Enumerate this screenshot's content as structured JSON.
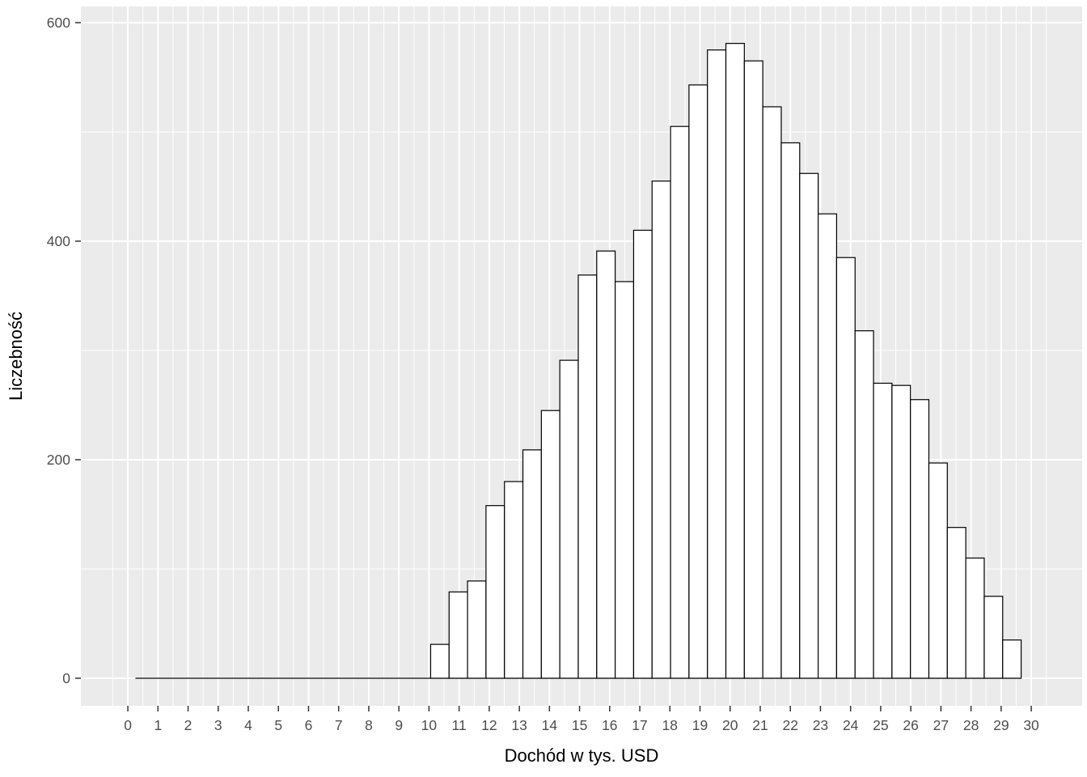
{
  "chart_data": {
    "type": "bar",
    "subtype": "histogram",
    "title": "",
    "xlabel": "Dochód w tys. USD",
    "ylabel": "Liczebność",
    "bin_start": 0.25,
    "bin_width": 0.6128,
    "counts": [
      0,
      0,
      0,
      0,
      0,
      0,
      0,
      0,
      0,
      0,
      0,
      0,
      0,
      0,
      0,
      0,
      31,
      79,
      89,
      158,
      180,
      209,
      245,
      291,
      369,
      391,
      363,
      410,
      455,
      505,
      543,
      575,
      581,
      565,
      523,
      490,
      462,
      425,
      385,
      318,
      270,
      268,
      255,
      197,
      138,
      110,
      75,
      35
    ],
    "x_ticks": [
      0,
      1,
      2,
      3,
      4,
      5,
      6,
      7,
      8,
      9,
      10,
      11,
      12,
      13,
      14,
      15,
      16,
      17,
      18,
      19,
      20,
      21,
      22,
      23,
      24,
      25,
      26,
      27,
      28,
      29,
      30
    ],
    "y_ticks": [
      0,
      200,
      400,
      600
    ],
    "y_minor_ticks": [
      100,
      300,
      500
    ],
    "x_minor_step": 1,
    "x_minor_start": -0.5,
    "x_minor_end": 30.5,
    "xlim": [
      -1.56,
      31.69
    ],
    "ylim": [
      -25.2,
      614.8
    ],
    "grid": true,
    "legend": false,
    "colors": {
      "panel_background": "#EBEBEB",
      "grid": "#FFFFFF",
      "bar_fill": "#FFFFFF",
      "bar_stroke": "#000000",
      "tick_label": "#4D4D4D",
      "axis_title": "#000000",
      "tick_mark": "#333333"
    }
  }
}
